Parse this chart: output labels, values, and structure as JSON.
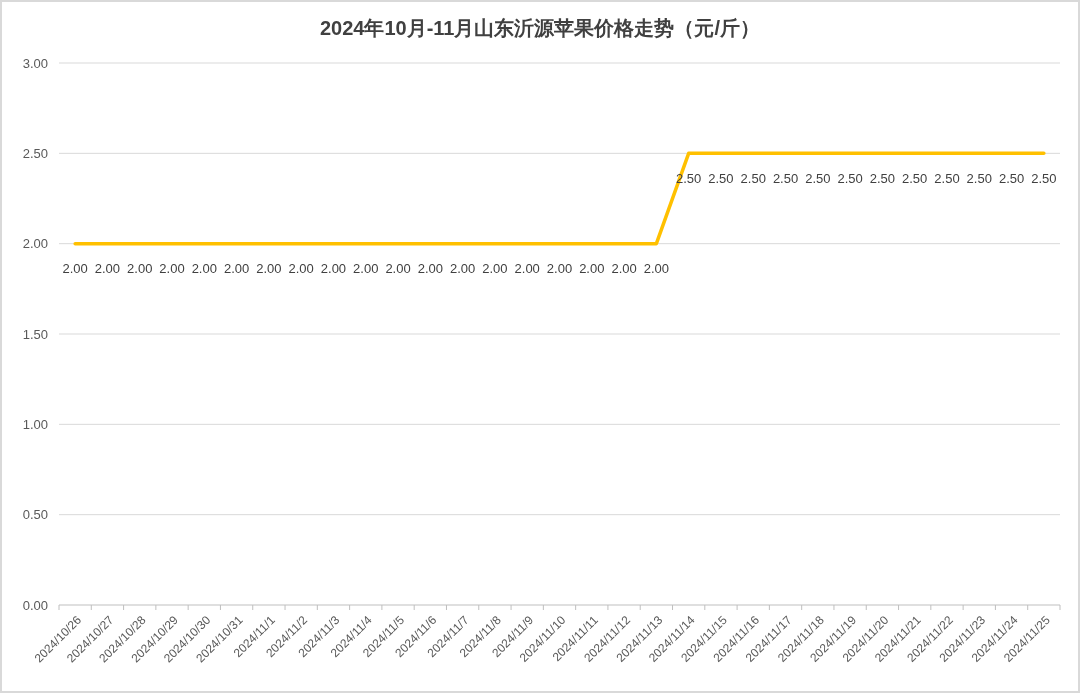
{
  "chart_data": {
    "type": "line",
    "title": "2024年10月-11月山东沂源苹果价格走势（元/斤）",
    "categories": [
      "2024/10/26",
      "2024/10/27",
      "2024/10/28",
      "2024/10/29",
      "2024/10/30",
      "2024/10/31",
      "2024/11/1",
      "2024/11/2",
      "2024/11/3",
      "2024/11/4",
      "2024/11/5",
      "2024/11/6",
      "2024/11/7",
      "2024/11/8",
      "2024/11/9",
      "2024/11/10",
      "2024/11/11",
      "2024/11/12",
      "2024/11/13",
      "2024/11/14",
      "2024/11/15",
      "2024/11/16",
      "2024/11/17",
      "2024/11/18",
      "2024/11/19",
      "2024/11/20",
      "2024/11/21",
      "2024/11/22",
      "2024/11/23",
      "2024/11/24",
      "2024/11/25"
    ],
    "color": "#ffc000",
    "values": [
      2,
      2,
      2,
      2,
      2,
      2,
      2,
      2,
      2,
      2,
      2,
      2,
      2,
      2,
      2,
      2,
      2,
      2,
      2,
      2.5,
      2.5,
      2.5,
      2.5,
      2.5,
      2.5,
      2.5,
      2.5,
      2.5,
      2.5,
      2.5,
      2.5
    ],
    "value_labels": [
      "2.00",
      "2.00",
      "2.00",
      "2.00",
      "2.00",
      "2.00",
      "2.00",
      "2.00",
      "2.00",
      "2.00",
      "2.00",
      "2.00",
      "2.00",
      "2.00",
      "2.00",
      "2.00",
      "2.00",
      "2.00",
      "2.00",
      "2.50",
      "2.50",
      "2.50",
      "2.50",
      "2.50",
      "2.50",
      "2.50",
      "2.50",
      "2.50",
      "2.50",
      "2.50",
      "2.50"
    ],
    "ylim": [
      0,
      3
    ],
    "yticks": [
      {
        "value": 0,
        "label": "0.00"
      },
      {
        "value": 0.5,
        "label": "0.50"
      },
      {
        "value": 1,
        "label": "1.00"
      },
      {
        "value": 1.5,
        "label": "1.50"
      },
      {
        "value": 2,
        "label": "2.00"
      },
      {
        "value": 2.5,
        "label": "2.50"
      },
      {
        "value": 3,
        "label": "3.00"
      }
    ],
    "grid": "y",
    "line_style": "solid"
  }
}
